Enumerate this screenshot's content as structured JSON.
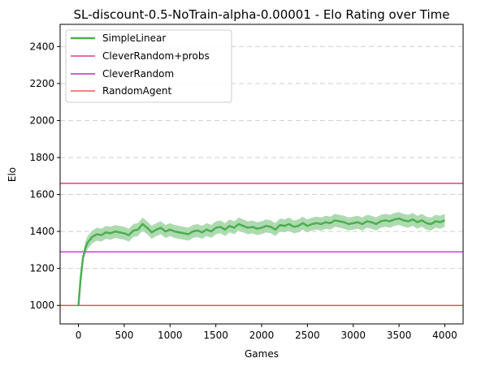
{
  "chart_data": {
    "type": "line",
    "title": "SL-discount-0.5-NoTrain-alpha-0.00001 - Elo Rating over Time",
    "xlabel": "Games",
    "ylabel": "Elo",
    "xlim": [
      -200,
      4200
    ],
    "ylim": [
      900,
      2520
    ],
    "xticks": [
      0,
      500,
      1000,
      1500,
      2000,
      2500,
      3000,
      3500,
      4000
    ],
    "yticks": [
      1000,
      1200,
      1400,
      1600,
      1800,
      2000,
      2200,
      2400
    ],
    "grid": "horizontal-dashed",
    "legend_position": "top-left",
    "series": [
      {
        "name": "SimpleLinear",
        "color": "#4caf50",
        "band_color": "#a5d6a7",
        "x": [
          0,
          25,
          50,
          75,
          100,
          150,
          200,
          250,
          300,
          350,
          400,
          450,
          500,
          550,
          600,
          650,
          700,
          750,
          800,
          850,
          900,
          950,
          1000,
          1050,
          1100,
          1150,
          1200,
          1250,
          1300,
          1350,
          1400,
          1450,
          1500,
          1550,
          1600,
          1650,
          1700,
          1750,
          1800,
          1850,
          1900,
          1950,
          2000,
          2050,
          2100,
          2150,
          2200,
          2250,
          2300,
          2350,
          2400,
          2450,
          2500,
          2550,
          2600,
          2650,
          2700,
          2750,
          2800,
          2850,
          2900,
          2950,
          3000,
          3050,
          3100,
          3150,
          3200,
          3250,
          3300,
          3350,
          3400,
          3450,
          3500,
          3550,
          3600,
          3650,
          3700,
          3750,
          3800,
          3850,
          3900,
          3950,
          4000
        ],
        "y": [
          1000,
          1150,
          1260,
          1310,
          1340,
          1370,
          1385,
          1380,
          1395,
          1390,
          1400,
          1395,
          1390,
          1380,
          1405,
          1410,
          1440,
          1420,
          1395,
          1410,
          1420,
          1400,
          1410,
          1400,
          1395,
          1390,
          1385,
          1400,
          1405,
          1395,
          1410,
          1400,
          1420,
          1425,
          1410,
          1430,
          1420,
          1440,
          1430,
          1420,
          1425,
          1415,
          1420,
          1430,
          1425,
          1410,
          1435,
          1430,
          1440,
          1425,
          1430,
          1445,
          1430,
          1440,
          1445,
          1440,
          1450,
          1445,
          1460,
          1455,
          1450,
          1440,
          1445,
          1450,
          1440,
          1455,
          1450,
          1440,
          1455,
          1460,
          1455,
          1465,
          1470,
          1460,
          1455,
          1465,
          1450,
          1460,
          1445,
          1440,
          1455,
          1450,
          1460
        ],
        "band": 35
      },
      {
        "name": "CleverRandom+probs",
        "color": "#d81b60",
        "y_const": 1660
      },
      {
        "name": "CleverRandom",
        "color": "#b000c8",
        "y_const": 1290
      },
      {
        "name": "RandomAgent",
        "color": "#e53935",
        "y_const": 1000
      }
    ]
  }
}
